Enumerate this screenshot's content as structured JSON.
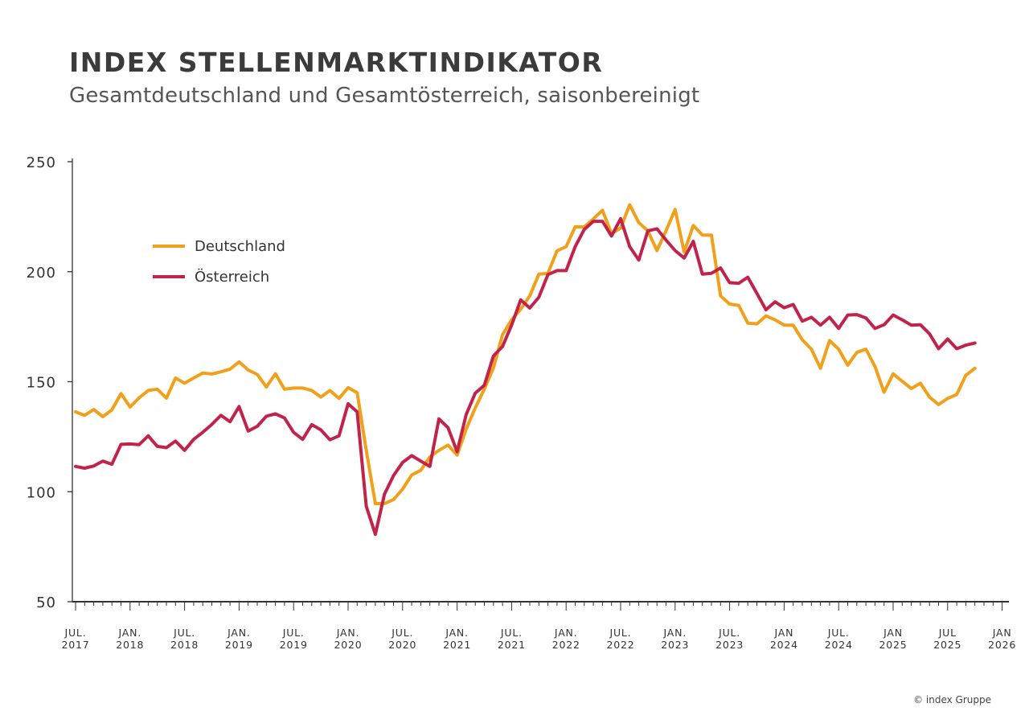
{
  "title": "INDEX STELLENMARKTINDIKATOR",
  "subtitle": "Gesamtdeutschland und Gesamtösterreich, saisonbereinigt",
  "credit": "© index Gruppe",
  "chart_data": {
    "type": "line",
    "title": "INDEX STELLENMARKTINDIKATOR",
    "subtitle": "Gesamtdeutschland und Gesamtösterreich, saisonbereinigt",
    "xlabel": "",
    "ylabel": "",
    "ylim": [
      50,
      250
    ],
    "yticks": [
      50,
      100,
      150,
      200,
      250
    ],
    "x_start": "2017-07",
    "x_end": "2026-01",
    "x_frequency": "monthly",
    "x_first_value": "2017-07",
    "x_last_value": "2025-10",
    "xtick_labels": [
      [
        "JUL.",
        "2017"
      ],
      [
        "JAN.",
        "2018"
      ],
      [
        "JUL.",
        "2018"
      ],
      [
        "JAN.",
        "2019"
      ],
      [
        "JUL.",
        "2019"
      ],
      [
        "JAN.",
        "2020"
      ],
      [
        "JUL.",
        "2020"
      ],
      [
        "JAN.",
        "2021"
      ],
      [
        "JUL.",
        "2021"
      ],
      [
        "JAN.",
        "2022"
      ],
      [
        "JUL.",
        "2022"
      ],
      [
        "JAN.",
        "2023"
      ],
      [
        "JUL.",
        "2023"
      ],
      [
        "JAN",
        "2024"
      ],
      [
        "JUL.",
        "2024"
      ],
      [
        "JAN",
        "2025"
      ],
      [
        "JUL",
        "2025"
      ],
      [
        "JAN",
        "2026"
      ]
    ],
    "grid": false,
    "legend_position": "top-left",
    "series": [
      {
        "name": "Deutschland",
        "color": "#f0a01a",
        "values": [
          136.3,
          134.7,
          137.4,
          134.1,
          137.2,
          144.6,
          138.5,
          142.7,
          146.0,
          146.6,
          142.5,
          151.7,
          149.3,
          151.7,
          153.9,
          153.5,
          154.5,
          155.7,
          159.0,
          155.3,
          153.3,
          147.6,
          153.6,
          146.6,
          147.1,
          147.1,
          146.0,
          143.0,
          146.0,
          142.4,
          147.3,
          145.0,
          118.8,
          94.6,
          94.6,
          96.4,
          101.2,
          107.6,
          109.7,
          115.8,
          118.8,
          121.2,
          116.6,
          128.5,
          138.1,
          146.6,
          156.3,
          171.4,
          178.1,
          182.9,
          189.0,
          198.9,
          199.3,
          209.5,
          211.4,
          220.4,
          220.4,
          224.0,
          227.9,
          217.4,
          219.8,
          230.4,
          222.3,
          218.6,
          209.6,
          218.6,
          228.3,
          208.9,
          221.0,
          216.6,
          216.6,
          189.0,
          185.3,
          184.7,
          176.6,
          176.3,
          179.9,
          178.1,
          175.7,
          175.7,
          169.0,
          164.8,
          156.1,
          168.7,
          164.8,
          157.5,
          163.3,
          164.8,
          156.9,
          145.2,
          153.6,
          150.2,
          146.9,
          149.3,
          143.0,
          139.6,
          142.4,
          144.2,
          152.9,
          156.1
        ]
      },
      {
        "name": "Österreich",
        "color": "#c0244a",
        "values": [
          111.5,
          110.7,
          111.7,
          113.9,
          112.5,
          121.5,
          121.7,
          121.4,
          125.4,
          120.6,
          120.0,
          123.0,
          118.8,
          123.8,
          127.0,
          130.6,
          134.7,
          131.8,
          138.7,
          127.6,
          129.7,
          134.3,
          135.4,
          133.5,
          127.0,
          123.8,
          130.5,
          128.1,
          123.6,
          125.4,
          140.0,
          136.3,
          93.4,
          80.6,
          98.8,
          107.3,
          113.3,
          116.4,
          113.9,
          111.5,
          133.1,
          129.1,
          118.2,
          135.1,
          144.8,
          148.4,
          161.7,
          166.0,
          175.7,
          187.2,
          183.5,
          188.4,
          198.7,
          200.5,
          200.5,
          211.4,
          219.2,
          222.9,
          222.9,
          216.2,
          224.1,
          211.4,
          205.3,
          218.6,
          219.5,
          214.4,
          209.6,
          206.2,
          213.8,
          198.9,
          199.3,
          201.7,
          195.0,
          194.7,
          197.5,
          190.2,
          182.7,
          186.3,
          183.6,
          185.1,
          177.5,
          179.3,
          175.7,
          179.3,
          174.2,
          180.3,
          180.5,
          179.0,
          174.2,
          175.9,
          180.3,
          178.1,
          175.7,
          175.9,
          171.8,
          165.0,
          169.4,
          165.0,
          166.6,
          167.6
        ]
      }
    ]
  }
}
